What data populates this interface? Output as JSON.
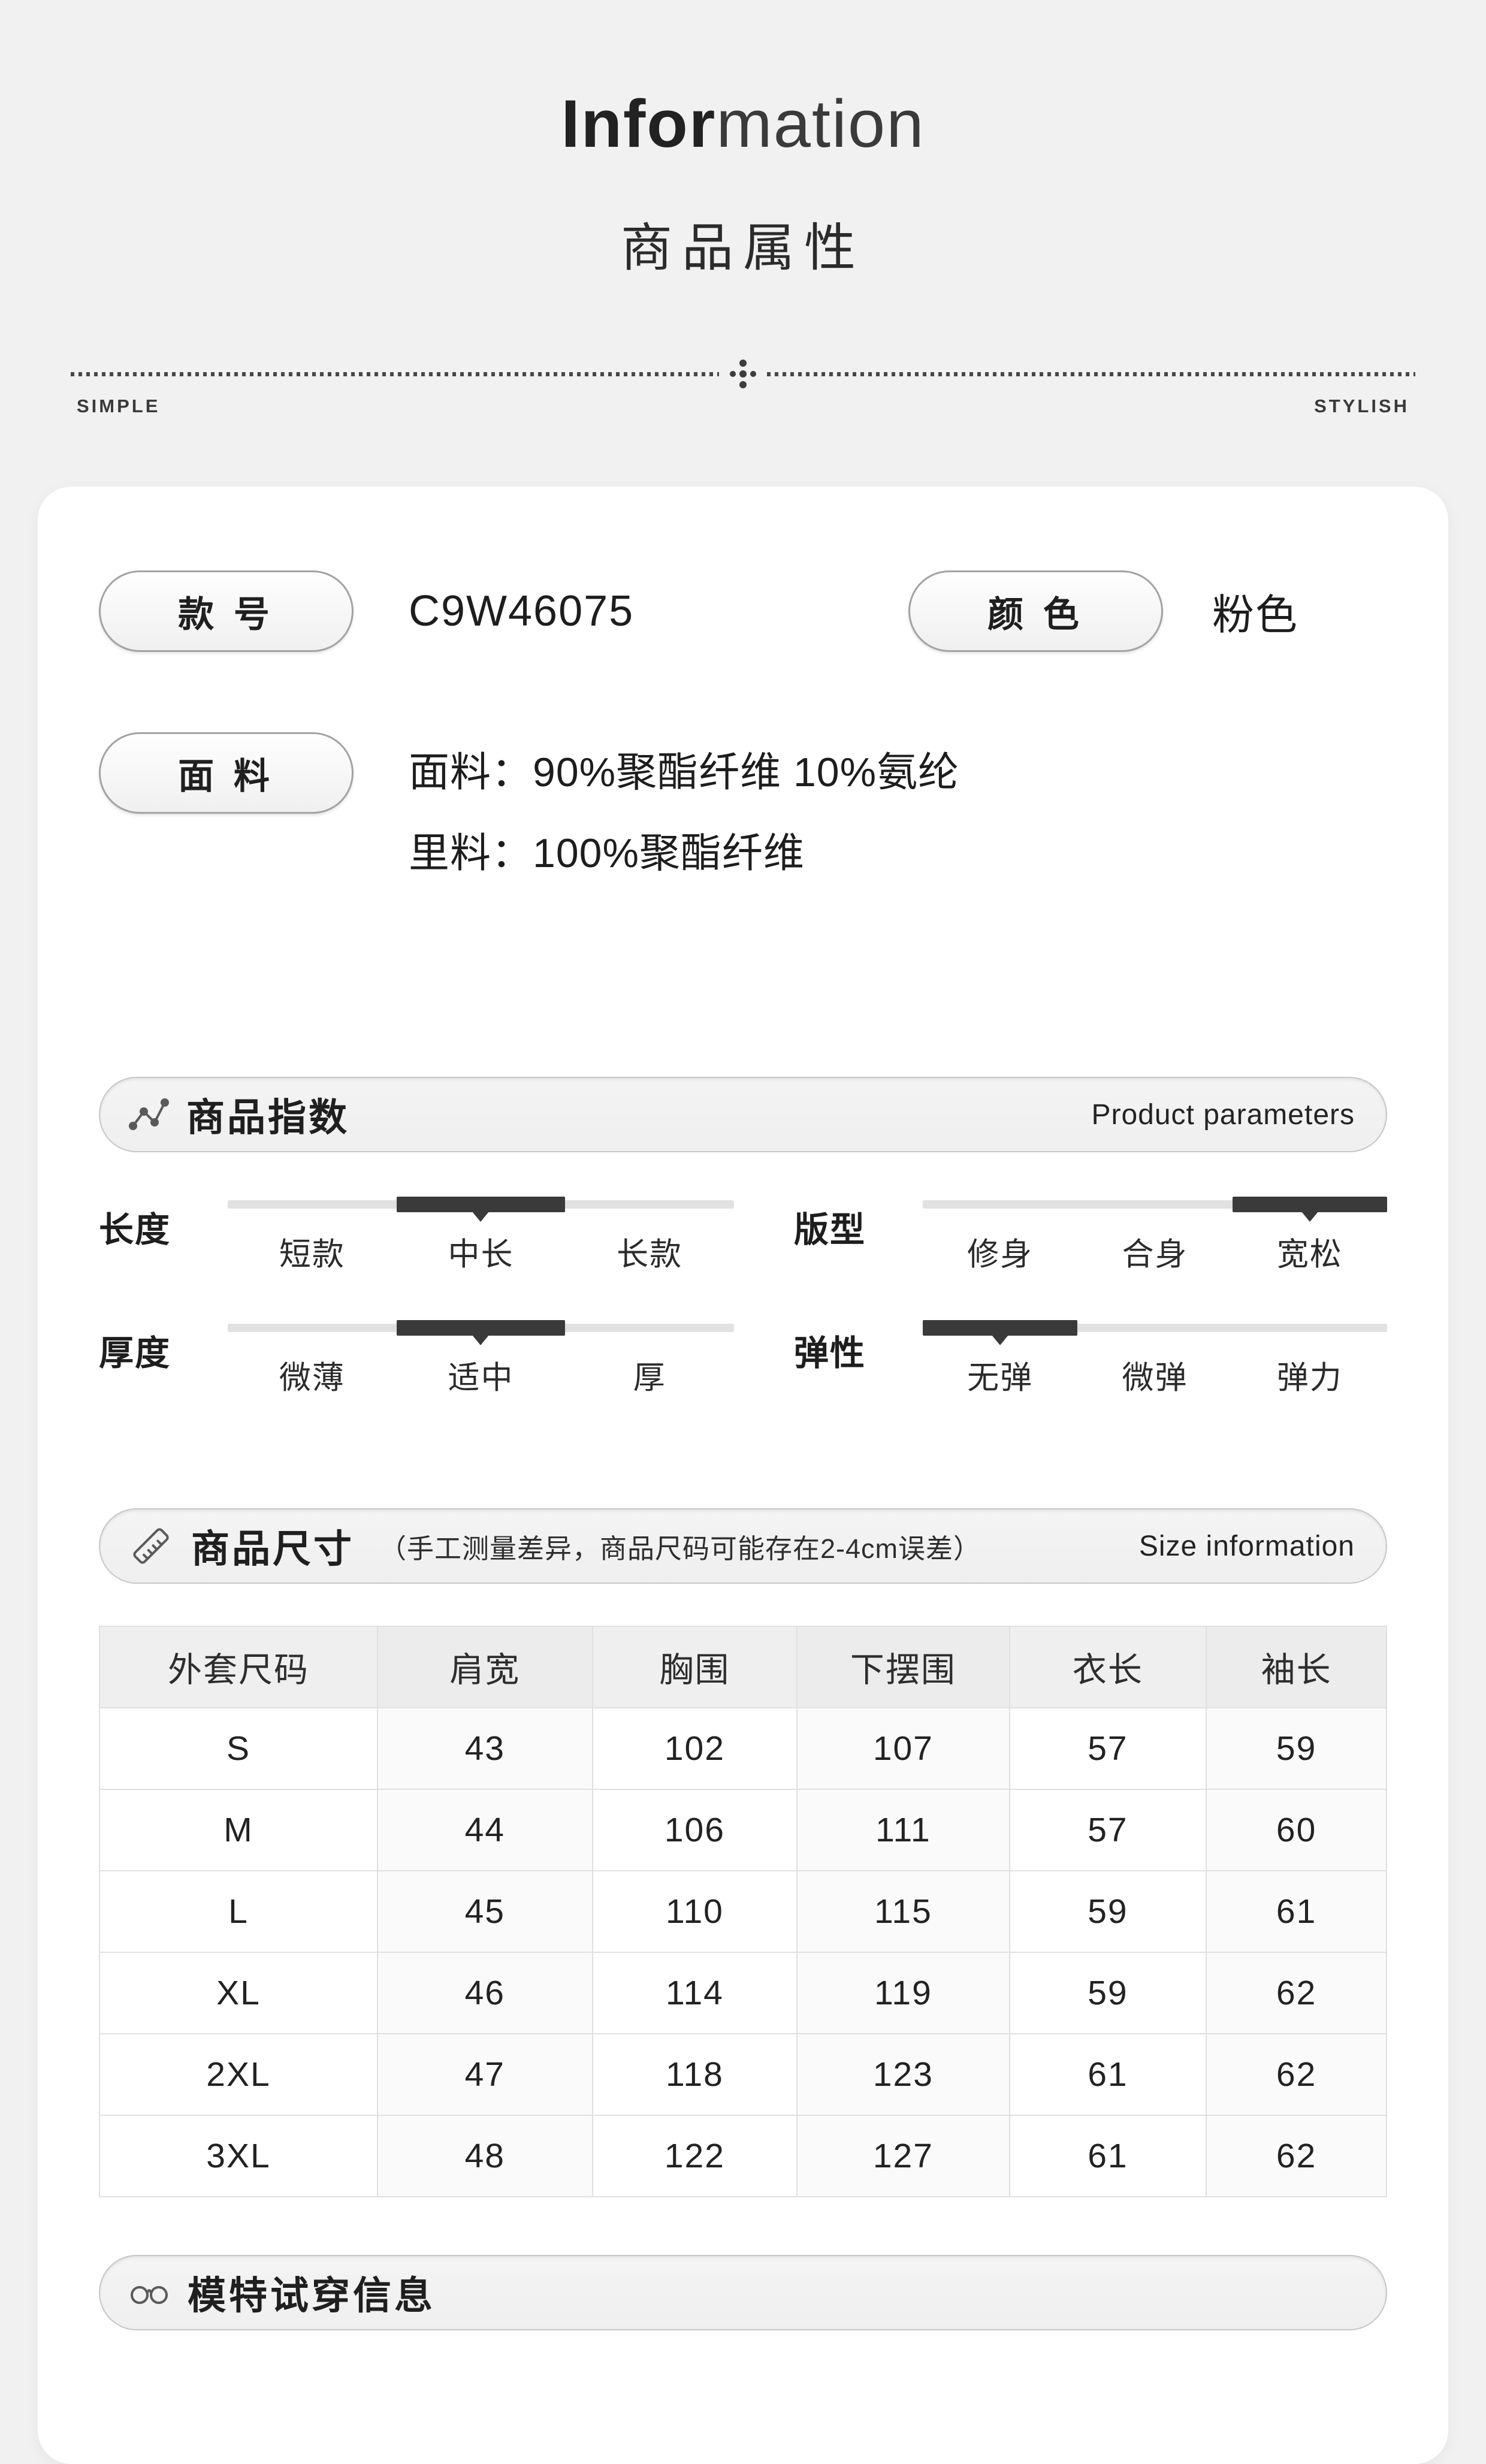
{
  "page": {
    "background": "#f1f1f2",
    "card_background": "#ffffff",
    "accent_dark": "#3a3a3a",
    "track_gray": "#e1e1e1"
  },
  "header": {
    "title_bold": "Infor",
    "title_light": "mation",
    "subtitle": "商品属性",
    "left_tag": "SIMPLE",
    "right_tag": "STYLISH"
  },
  "attributes": {
    "style_no_label": "款 号",
    "style_no_value": "C9W46075",
    "color_label": "颜 色",
    "color_value": "粉色",
    "fabric_label": "面 料",
    "fabric_line1": "面料：90%聚酯纤维 10%氨纶",
    "fabric_line2": "里料：100%聚酯纤维"
  },
  "params": {
    "icon": "line-chart-icon",
    "title": "商品指数",
    "title_en": "Product parameters",
    "items": [
      {
        "label": "长度",
        "options": [
          "短款",
          "中长",
          "长款"
        ],
        "selected": 1
      },
      {
        "label": "版型",
        "options": [
          "修身",
          "合身",
          "宽松"
        ],
        "selected": 2
      },
      {
        "label": "厚度",
        "options": [
          "微薄",
          "适中",
          "厚"
        ],
        "selected": 1
      },
      {
        "label": "弹性",
        "options": [
          "无弹",
          "微弹",
          "弹力"
        ],
        "selected": 0
      }
    ]
  },
  "sizes": {
    "icon": "ruler-icon",
    "title": "商品尺寸",
    "note": "（手工测量差异，商品尺码可能存在2-4cm误差）",
    "title_en": "Size information",
    "table": {
      "headers": [
        "外套尺码",
        "肩宽",
        "胸围",
        "下摆围",
        "衣长",
        "袖长"
      ],
      "rows": [
        [
          "S",
          "43",
          "102",
          "107",
          "57",
          "59"
        ],
        [
          "M",
          "44",
          "106",
          "111",
          "57",
          "60"
        ],
        [
          "L",
          "45",
          "110",
          "115",
          "59",
          "61"
        ],
        [
          "XL",
          "46",
          "114",
          "119",
          "59",
          "62"
        ],
        [
          "2XL",
          "47",
          "118",
          "123",
          "61",
          "62"
        ],
        [
          "3XL",
          "48",
          "122",
          "127",
          "61",
          "62"
        ]
      ]
    }
  },
  "model_section": {
    "icon": "glasses-icon",
    "title": "模特试穿信息"
  }
}
